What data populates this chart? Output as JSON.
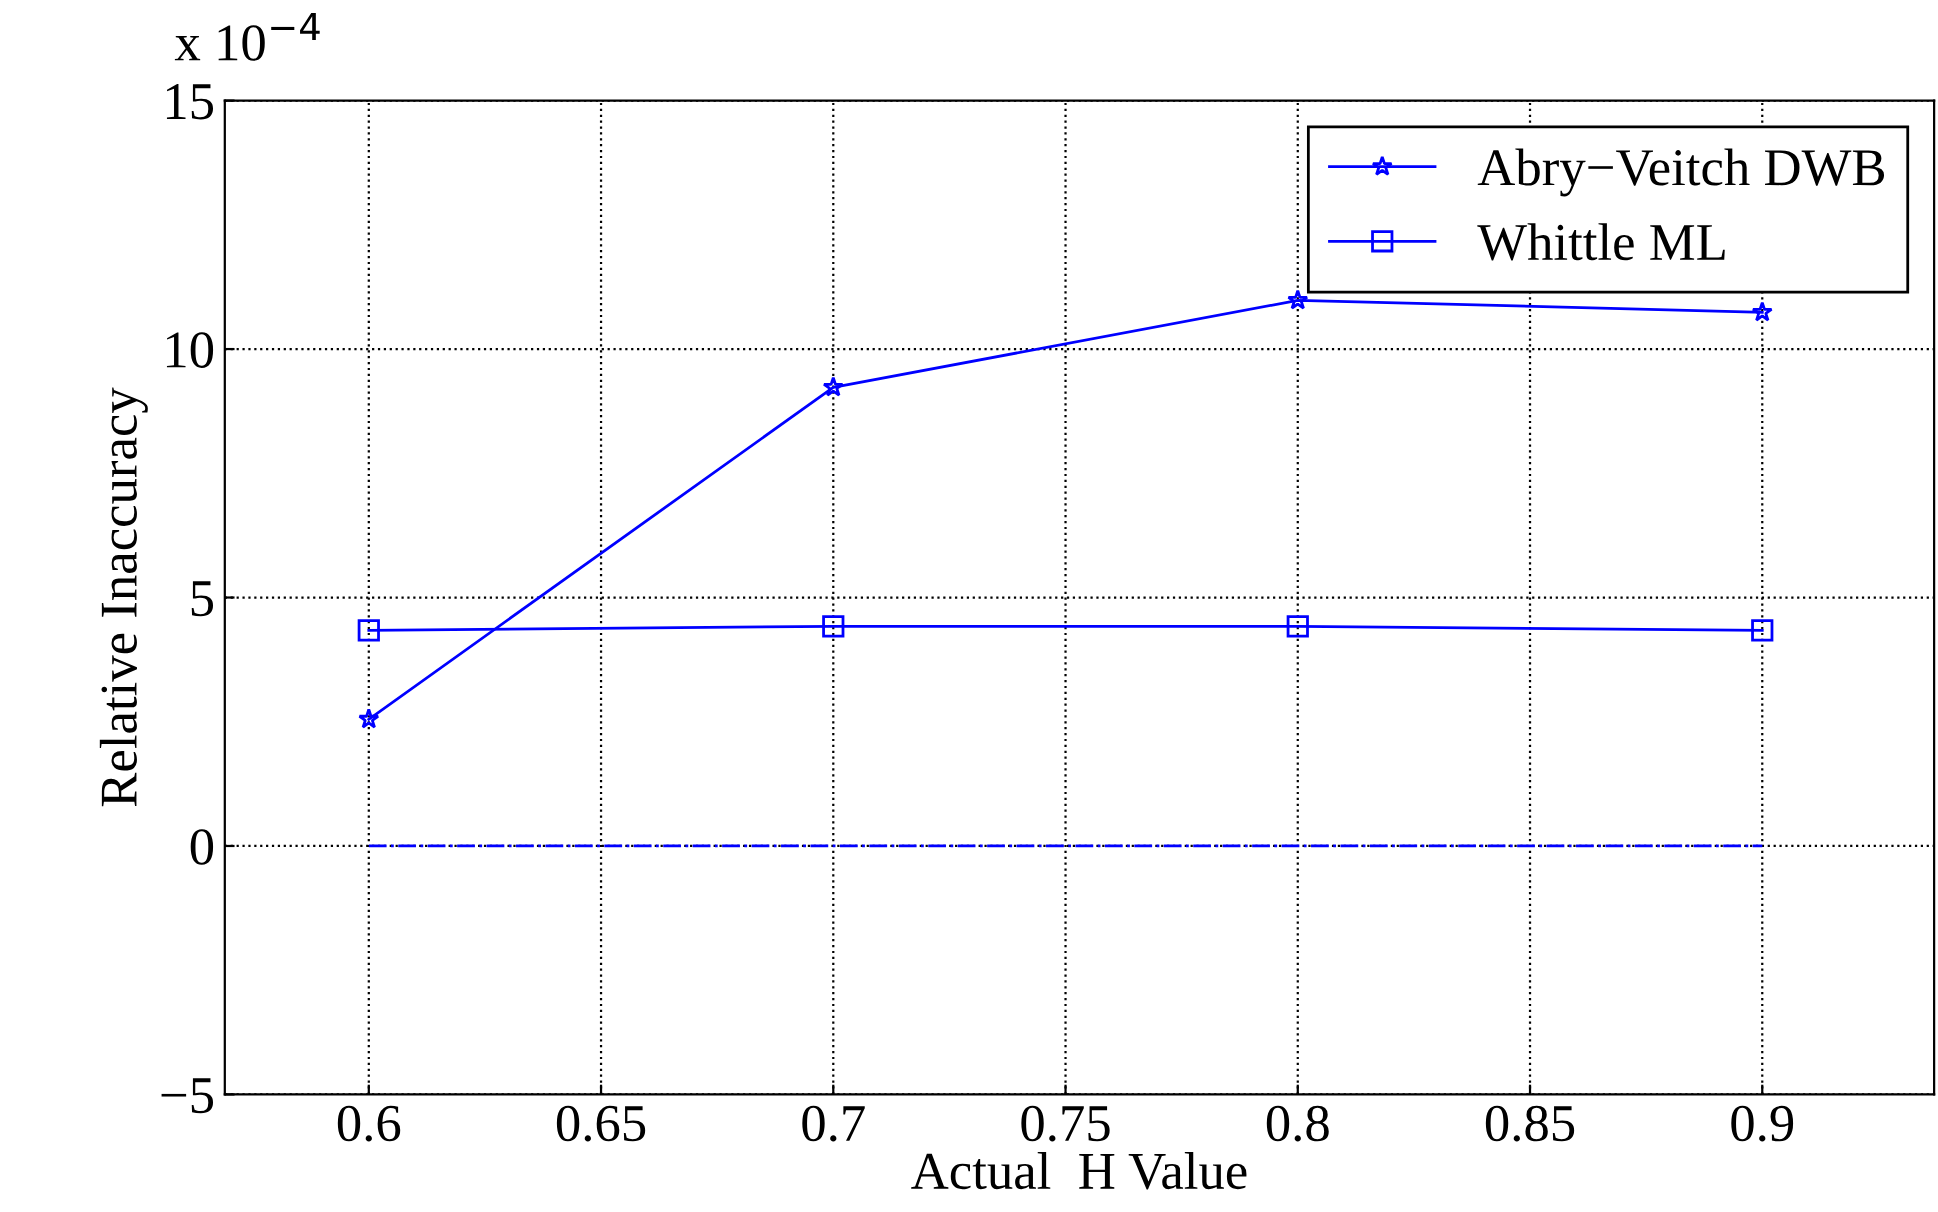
{
  "chart_data": {
    "type": "line",
    "xlabel": "Actual  H Value",
    "ylabel": "Relative Inaccuracy",
    "annotations": [
      "x 10$^{−4}$"
    ],
    "x": [
      0.6,
      0.7,
      0.8,
      0.9
    ],
    "series": [
      {
        "name": "Abry−Veitch DWB",
        "color": "#0000ff",
        "values": [
          2.55,
          9.23,
          10.98,
          10.74
        ],
        "marker": "star"
      },
      {
        "name": "Whittle ML",
        "color": "#0000ff",
        "values": [
          4.34,
          4.42,
          4.42,
          4.34
        ],
        "marker": "square"
      },
      {
        "color": "#0000ff",
        "values": [
          0,
          0,
          0,
          0
        ],
        "marker": "none",
        "line_style": "dashdot"
      }
    ],
    "xlim": [
      0.569,
      0.937
    ],
    "xticks": [
      {
        "value": 0.6,
        "label": "0.6"
      },
      {
        "value": 0.65,
        "label": "0.65"
      },
      {
        "value": 0.7,
        "label": "0.7"
      },
      {
        "value": 0.75,
        "label": "0.75"
      },
      {
        "value": 0.8,
        "label": "0.8"
      },
      {
        "value": 0.85,
        "label": "0.85"
      },
      {
        "value": 0.9,
        "label": "0.9"
      }
    ],
    "ylim": [
      -5,
      15
    ],
    "yticks": [
      {
        "value": -5,
        "label": "−5"
      },
      0,
      5,
      10,
      15
    ],
    "grid": true,
    "legend": "top right",
    "line_style": "solid"
  }
}
